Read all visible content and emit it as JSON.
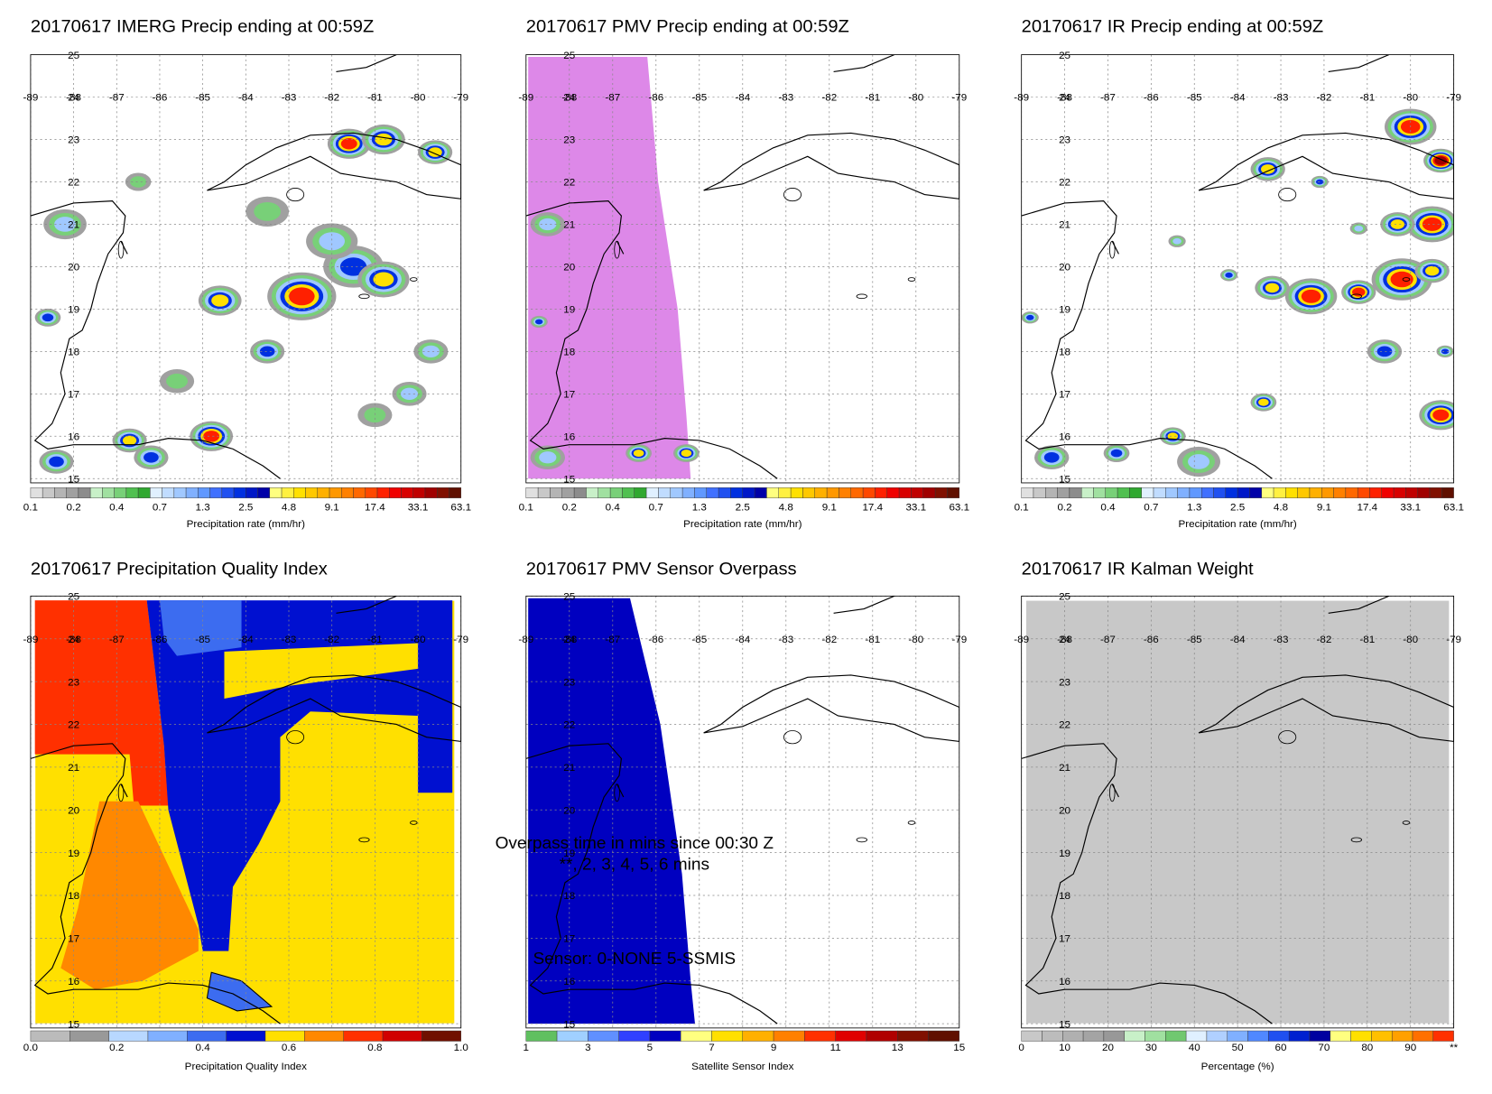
{
  "panels": [
    {
      "title": "20170617 IMERG Precip ending at 00:59Z",
      "lat_labels": [
        "25",
        "24",
        "23",
        "22",
        "21",
        "20",
        "19",
        "18",
        "17",
        "16",
        "15"
      ],
      "lon_labels": [
        "-89",
        "-88",
        "-87",
        "-86",
        "-85",
        "-84",
        "-83",
        "-82",
        "-81",
        "-80",
        "-79"
      ],
      "colorbar": {
        "colors": [
          "#e0e0e0",
          "#c8c8c8",
          "#b4b4b4",
          "#a0a0a0",
          "#8c8c8c",
          "#c8f0c8",
          "#a0e0a0",
          "#78d078",
          "#50c050",
          "#30a830",
          "#e0f0ff",
          "#c0dcff",
          "#a0c8ff",
          "#80b0ff",
          "#6098ff",
          "#4070ff",
          "#2050f0",
          "#0030e0",
          "#0018c8",
          "#0000a8",
          "#ffff80",
          "#fff040",
          "#ffe000",
          "#ffc800",
          "#ffb000",
          "#ff9800",
          "#ff8000",
          "#ff6800",
          "#ff4800",
          "#ff2000",
          "#f00000",
          "#d80000",
          "#c00000",
          "#a00000",
          "#801000",
          "#601000"
        ],
        "labels": [
          "0.1",
          "0.2",
          "0.4",
          "0.7",
          "1.3",
          "2.5",
          "4.8",
          "9.1",
          "17.4",
          "33.1",
          "63.1"
        ],
        "title": "Precipitation rate (mm/hr)"
      }
    },
    {
      "title": "20170617 PMV Precip ending at 00:59Z",
      "lat_labels": [
        "25",
        "24",
        "23",
        "22",
        "21",
        "20",
        "19",
        "18",
        "17",
        "16",
        "15"
      ],
      "lon_labels": [
        "-89",
        "-88",
        "-87",
        "-86",
        "-85",
        "-84",
        "-83",
        "-82",
        "-81",
        "-80",
        "-79"
      ],
      "colorbar": {
        "colors": [
          "#e0e0e0",
          "#c8c8c8",
          "#b4b4b4",
          "#a0a0a0",
          "#8c8c8c",
          "#c8f0c8",
          "#a0e0a0",
          "#78d078",
          "#50c050",
          "#30a830",
          "#e0f0ff",
          "#c0dcff",
          "#a0c8ff",
          "#80b0ff",
          "#6098ff",
          "#4070ff",
          "#2050f0",
          "#0030e0",
          "#0018c8",
          "#0000a8",
          "#ffff80",
          "#fff040",
          "#ffe000",
          "#ffc800",
          "#ffb000",
          "#ff9800",
          "#ff8000",
          "#ff6800",
          "#ff4800",
          "#ff2000",
          "#f00000",
          "#d80000",
          "#c00000",
          "#a00000",
          "#801000",
          "#601000"
        ],
        "labels": [
          "0.1",
          "0.2",
          "0.4",
          "0.7",
          "1.3",
          "2.5",
          "4.8",
          "9.1",
          "17.4",
          "33.1",
          "63.1"
        ],
        "title": "Precipitation rate (mm/hr)"
      }
    },
    {
      "title": "20170617 IR Precip ending at 00:59Z",
      "lat_labels": [
        "25",
        "24",
        "23",
        "22",
        "21",
        "20",
        "19",
        "18",
        "17",
        "16",
        "15"
      ],
      "lon_labels": [
        "-89",
        "-88",
        "-87",
        "-86",
        "-85",
        "-84",
        "-83",
        "-82",
        "-81",
        "-80",
        "-79"
      ],
      "colorbar": {
        "colors": [
          "#e0e0e0",
          "#c8c8c8",
          "#b4b4b4",
          "#a0a0a0",
          "#8c8c8c",
          "#c8f0c8",
          "#a0e0a0",
          "#78d078",
          "#50c050",
          "#30a830",
          "#e0f0ff",
          "#c0dcff",
          "#a0c8ff",
          "#80b0ff",
          "#6098ff",
          "#4070ff",
          "#2050f0",
          "#0030e0",
          "#0018c8",
          "#0000a8",
          "#ffff80",
          "#fff040",
          "#ffe000",
          "#ffc800",
          "#ffb000",
          "#ff9800",
          "#ff8000",
          "#ff6800",
          "#ff4800",
          "#ff2000",
          "#f00000",
          "#d80000",
          "#c00000",
          "#a00000",
          "#801000",
          "#601000"
        ],
        "labels": [
          "0.1",
          "0.2",
          "0.4",
          "0.7",
          "1.3",
          "2.5",
          "4.8",
          "9.1",
          "17.4",
          "33.1",
          "63.1"
        ],
        "title": "Precipitation rate (mm/hr)"
      }
    },
    {
      "title": "20170617 Precipitation Quality Index",
      "lat_labels": [
        "25",
        "24",
        "23",
        "22",
        "21",
        "20",
        "19",
        "18",
        "17",
        "16",
        "15"
      ],
      "lon_labels": [
        "-89",
        "-88",
        "-87",
        "-86",
        "-85",
        "-84",
        "-83",
        "-82",
        "-81",
        "-80",
        "-79"
      ],
      "colorbar": {
        "colors": [
          "#bbbbbb",
          "#999999",
          "#b8d8ff",
          "#80b0ff",
          "#3c6cf0",
          "#0010d0",
          "#ffe000",
          "#ff8800",
          "#ff3000",
          "#d00000",
          "#701000"
        ],
        "labels": [
          "0.0",
          "0.2",
          "0.4",
          "0.6",
          "0.8",
          "1.0"
        ],
        "title": "Precipitation Quality Index"
      }
    },
    {
      "title": "20170617 PMV Sensor Overpass",
      "lat_labels": [
        "25",
        "24",
        "23",
        "22",
        "21",
        "20",
        "19",
        "18",
        "17",
        "16",
        "15"
      ],
      "lon_labels": [
        "-89",
        "-88",
        "-87",
        "-86",
        "-85",
        "-84",
        "-83",
        "-82",
        "-81",
        "-80",
        "-79"
      ],
      "colorbar": {
        "colors": [
          "#60c060",
          "#a0d0ff",
          "#6090ff",
          "#3040ff",
          "#0000c0",
          "#ffff80",
          "#ffe000",
          "#ffb000",
          "#ff8000",
          "#ff3000",
          "#e00000",
          "#b00000",
          "#801000",
          "#601000"
        ],
        "labels": [
          "1",
          "3",
          "5",
          "7",
          "9",
          "11",
          "13",
          "15"
        ],
        "title": "Satellite Sensor Index"
      },
      "annotations": [
        "Overpass time in mins since 00:30 Z",
        "**, 2, 3, 4, 5, 6 mins",
        "Sensor:  0-NONE  5-SSMIS"
      ]
    },
    {
      "title": "20170617 IR Kalman Weight",
      "lat_labels": [
        "25",
        "24",
        "23",
        "22",
        "21",
        "20",
        "19",
        "18",
        "17",
        "16",
        "15"
      ],
      "lon_labels": [
        "-89",
        "-88",
        "-87",
        "-86",
        "-85",
        "-84",
        "-83",
        "-82",
        "-81",
        "-80",
        "-79"
      ],
      "colorbar": {
        "colors": [
          "#c8c8c8",
          "#bcbcbc",
          "#b0b0b0",
          "#a4a4a4",
          "#989898",
          "#c8f0c8",
          "#a0e0a0",
          "#70c870",
          "#e0f0ff",
          "#b0d0ff",
          "#80b0ff",
          "#5088ff",
          "#2050f0",
          "#0020d0",
          "#0000a0",
          "#ffff80",
          "#ffe000",
          "#ffc000",
          "#ffa000",
          "#ff7000",
          "#ff3000"
        ],
        "labels": [
          "0",
          "10",
          "20",
          "30",
          "40",
          "50",
          "60",
          "70",
          "80",
          "90",
          "**"
        ],
        "title": "Percentage (%)"
      }
    }
  ]
}
